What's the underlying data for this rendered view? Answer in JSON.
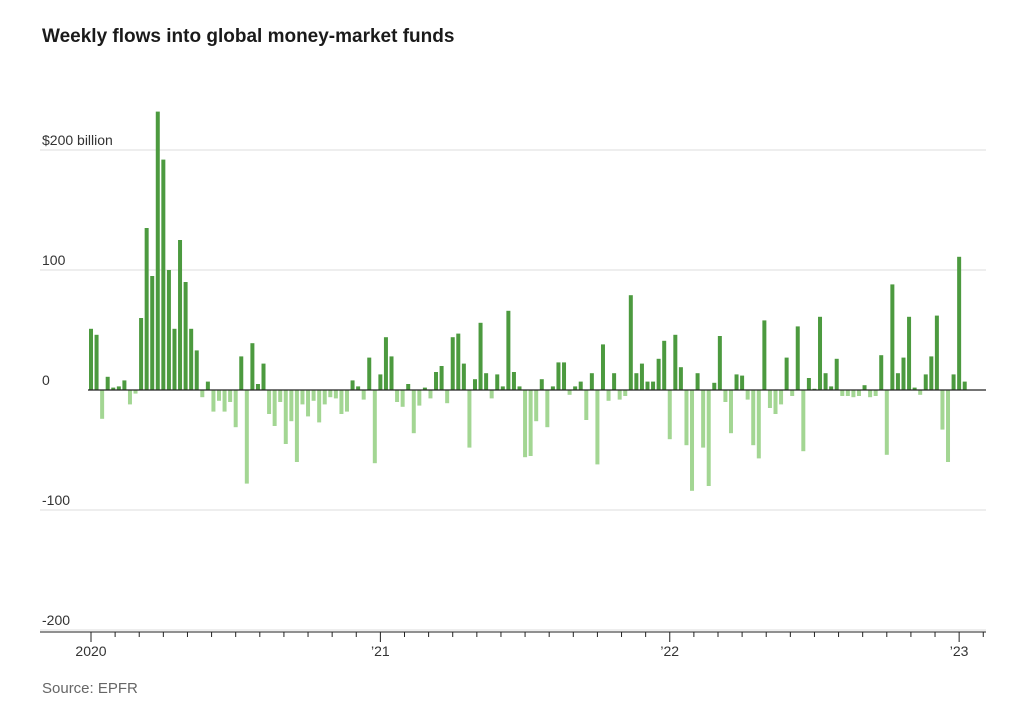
{
  "chart_data": {
    "type": "bar",
    "title": "Weekly flows into global money-market funds",
    "source": "Source: EPFR",
    "xlabel": "",
    "ylabel": "",
    "ylim": [
      -200,
      230
    ],
    "y_ticks": [
      {
        "value": 200,
        "label": "$200 billion"
      },
      {
        "value": 100,
        "label": "100"
      },
      {
        "value": 0,
        "label": "0"
      },
      {
        "value": -100,
        "label": "-100"
      },
      {
        "value": -200,
        "label": "-200"
      }
    ],
    "x_ticks": [
      {
        "week": 0,
        "label": "2020",
        "major": true
      },
      {
        "week": 52,
        "label": "’21",
        "major": true
      },
      {
        "week": 104,
        "label": "’22",
        "major": true
      },
      {
        "week": 156,
        "label": "’23",
        "major": true
      }
    ],
    "colors": {
      "positive": "#4c9a3f",
      "negative": "#a3d693",
      "grid": "#dddddd",
      "zero": "#222222"
    },
    "grid": true,
    "x_range_weeks": [
      -1,
      161
    ],
    "values": [
      51,
      46,
      -24,
      11,
      2,
      3,
      8,
      -12,
      -3,
      60,
      135,
      95,
      232,
      192,
      100,
      51,
      125,
      90,
      51,
      33,
      -6,
      7,
      -18,
      -9,
      -18,
      -10,
      -31,
      28,
      -78,
      39,
      5,
      22,
      -20,
      -30,
      -10,
      -45,
      -26,
      -60,
      -12,
      -22,
      -9,
      -27,
      -12,
      -6,
      -7,
      -20,
      -18,
      8,
      3,
      -8,
      27,
      -61,
      13,
      44,
      28,
      -10,
      -14,
      5,
      -36,
      -13,
      2,
      -7,
      15,
      20,
      -11,
      44,
      47,
      22,
      -48,
      9,
      56,
      14,
      -7,
      13,
      3,
      66,
      15,
      3,
      -56,
      -55,
      -26,
      9,
      -31,
      3,
      23,
      23,
      -4,
      3,
      7,
      -25,
      14,
      -62,
      38,
      -9,
      14,
      -8,
      -5,
      79,
      14,
      22,
      7,
      7,
      26,
      41,
      -41,
      46,
      19,
      -46,
      -84,
      14,
      -48,
      -80,
      6,
      45,
      -10,
      -36,
      13,
      12,
      -8,
      -46,
      -57,
      58,
      -15,
      -20,
      -12,
      27,
      -5,
      53,
      -51,
      10,
      1,
      61,
      14,
      3,
      26,
      -5,
      -5,
      -6,
      -5,
      4,
      -6,
      -5,
      29,
      -54,
      88,
      14,
      27,
      61,
      2,
      -4,
      13,
      28,
      62,
      -33,
      -60,
      13,
      111,
      7
    ]
  }
}
